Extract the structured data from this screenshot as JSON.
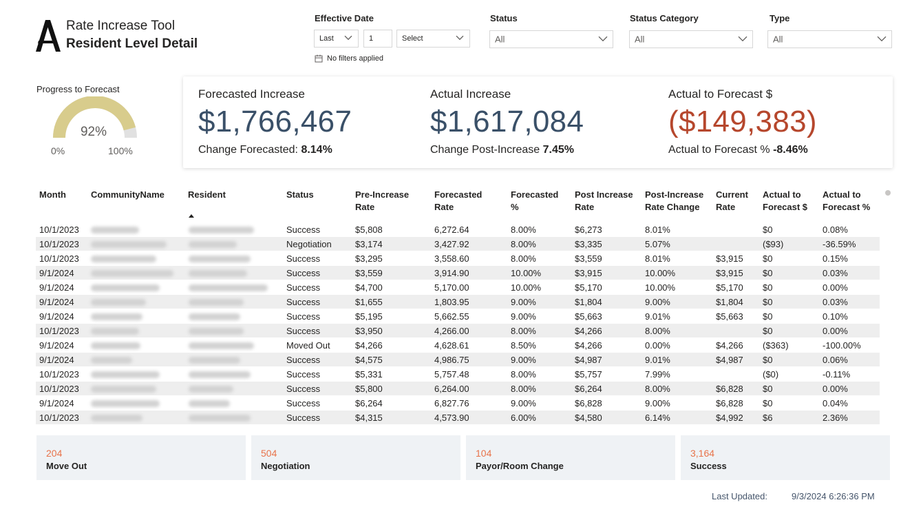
{
  "header": {
    "title": "Rate Increase Tool",
    "subtitle": "Resident Level Detail"
  },
  "filters": {
    "effective_date": {
      "label": "Effective Date",
      "period": "Last",
      "count": "1",
      "unit": "Select"
    },
    "status": {
      "label": "Status",
      "value": "All"
    },
    "status_category": {
      "label": "Status Category",
      "value": "All"
    },
    "type": {
      "label": "Type",
      "value": "All"
    },
    "no_filters": "No filters applied"
  },
  "gauge": {
    "title": "Progress to Forecast",
    "value_label": "92%",
    "value": 0.92,
    "min_label": "0%",
    "max_label": "100%",
    "fill_color": "#d8cc8c",
    "track_color": "#e1e1e1"
  },
  "kpis": {
    "forecasted": {
      "label": "Forecasted Increase",
      "value": "$1,766,467",
      "sub_label": "Change Forecasted:",
      "sub_value": "8.14%"
    },
    "actual": {
      "label": "Actual Increase",
      "value": "$1,617,084",
      "sub_label": "Change Post-Increase",
      "sub_value": "7.45%"
    },
    "variance": {
      "label": "Actual to Forecast $",
      "value": "($149,383)",
      "sub_label": "Actual to Forecast %",
      "sub_value": "-8.46%"
    }
  },
  "table": {
    "headers": {
      "month": "Month",
      "community": "CommunityName",
      "resident": "Resident",
      "status": "Status",
      "pre_rate_1": "Pre-Increase",
      "pre_rate_2": "Rate",
      "fc_rate_1": "Forecasted",
      "fc_rate_2": "Rate",
      "fc_pct_1": "Forecasted",
      "fc_pct_2": "%",
      "post_rate_1": "Post Increase",
      "post_rate_2": "Rate",
      "post_change_1": "Post-Increase",
      "post_change_2": "Rate Change",
      "current_1": "Current",
      "current_2": "Rate",
      "atf_d_1": "Actual to",
      "atf_d_2": "Forecast $",
      "atf_p_1": "Actual to",
      "atf_p_2": "Forecast %"
    },
    "rows": [
      [
        "10/1/2023",
        "Success",
        "$5,808",
        "6,272.64",
        "8.00%",
        "$6,273",
        "8.01%",
        "",
        "$0",
        "0.08%"
      ],
      [
        "10/1/2023",
        "Negotiation",
        "$3,174",
        "3,427.92",
        "8.00%",
        "$3,335",
        "5.07%",
        "",
        "($93)",
        "-36.59%"
      ],
      [
        "10/1/2023",
        "Success",
        "$3,295",
        "3,558.60",
        "8.00%",
        "$3,559",
        "8.01%",
        "$3,915",
        "$0",
        "0.15%"
      ],
      [
        "9/1/2024",
        "Success",
        "$3,559",
        "3,914.90",
        "10.00%",
        "$3,915",
        "10.00%",
        "$3,915",
        "$0",
        "0.03%"
      ],
      [
        "9/1/2024",
        "Success",
        "$4,700",
        "5,170.00",
        "10.00%",
        "$5,170",
        "10.00%",
        "$5,170",
        "$0",
        "0.00%"
      ],
      [
        "9/1/2024",
        "Success",
        "$1,655",
        "1,803.95",
        "9.00%",
        "$1,804",
        "9.00%",
        "$1,804",
        "$0",
        "0.03%"
      ],
      [
        "9/1/2024",
        "Success",
        "$5,195",
        "5,662.55",
        "9.00%",
        "$5,663",
        "9.01%",
        "$5,663",
        "$0",
        "0.10%"
      ],
      [
        "10/1/2023",
        "Success",
        "$3,950",
        "4,266.00",
        "8.00%",
        "$4,266",
        "8.00%",
        "",
        "$0",
        "0.00%"
      ],
      [
        "9/1/2024",
        "Moved Out",
        "$4,266",
        "4,628.61",
        "8.50%",
        "$4,266",
        "0.00%",
        "$4,266",
        "($363)",
        "-100.00%"
      ],
      [
        "9/1/2024",
        "Success",
        "$4,575",
        "4,986.75",
        "9.00%",
        "$4,987",
        "9.01%",
        "$4,987",
        "$0",
        "0.06%"
      ],
      [
        "10/1/2023",
        "Success",
        "$5,331",
        "5,757.48",
        "8.00%",
        "$5,757",
        "7.99%",
        "",
        "($0)",
        "-0.11%"
      ],
      [
        "10/1/2023",
        "Success",
        "$5,800",
        "6,264.00",
        "8.00%",
        "$6,264",
        "8.00%",
        "$6,828",
        "$0",
        "0.00%"
      ],
      [
        "9/1/2024",
        "Success",
        "$6,264",
        "6,827.76",
        "9.00%",
        "$6,828",
        "9.00%",
        "$6,828",
        "$0",
        "0.04%"
      ],
      [
        "10/1/2023",
        "Success",
        "$4,315",
        "4,573.90",
        "6.00%",
        "$4,580",
        "6.14%",
        "$4,992",
        "$6",
        "2.36%"
      ]
    ]
  },
  "status_cards": [
    {
      "count": "204",
      "name": "Move Out"
    },
    {
      "count": "504",
      "name": "Negotiation"
    },
    {
      "count": "104",
      "name": "Payor/Room Change"
    },
    {
      "count": "3,164",
      "name": "Success"
    }
  ],
  "footer": {
    "last_updated_label": "Last Updated:",
    "last_updated_value": "9/3/2024 6:26:36 PM"
  }
}
